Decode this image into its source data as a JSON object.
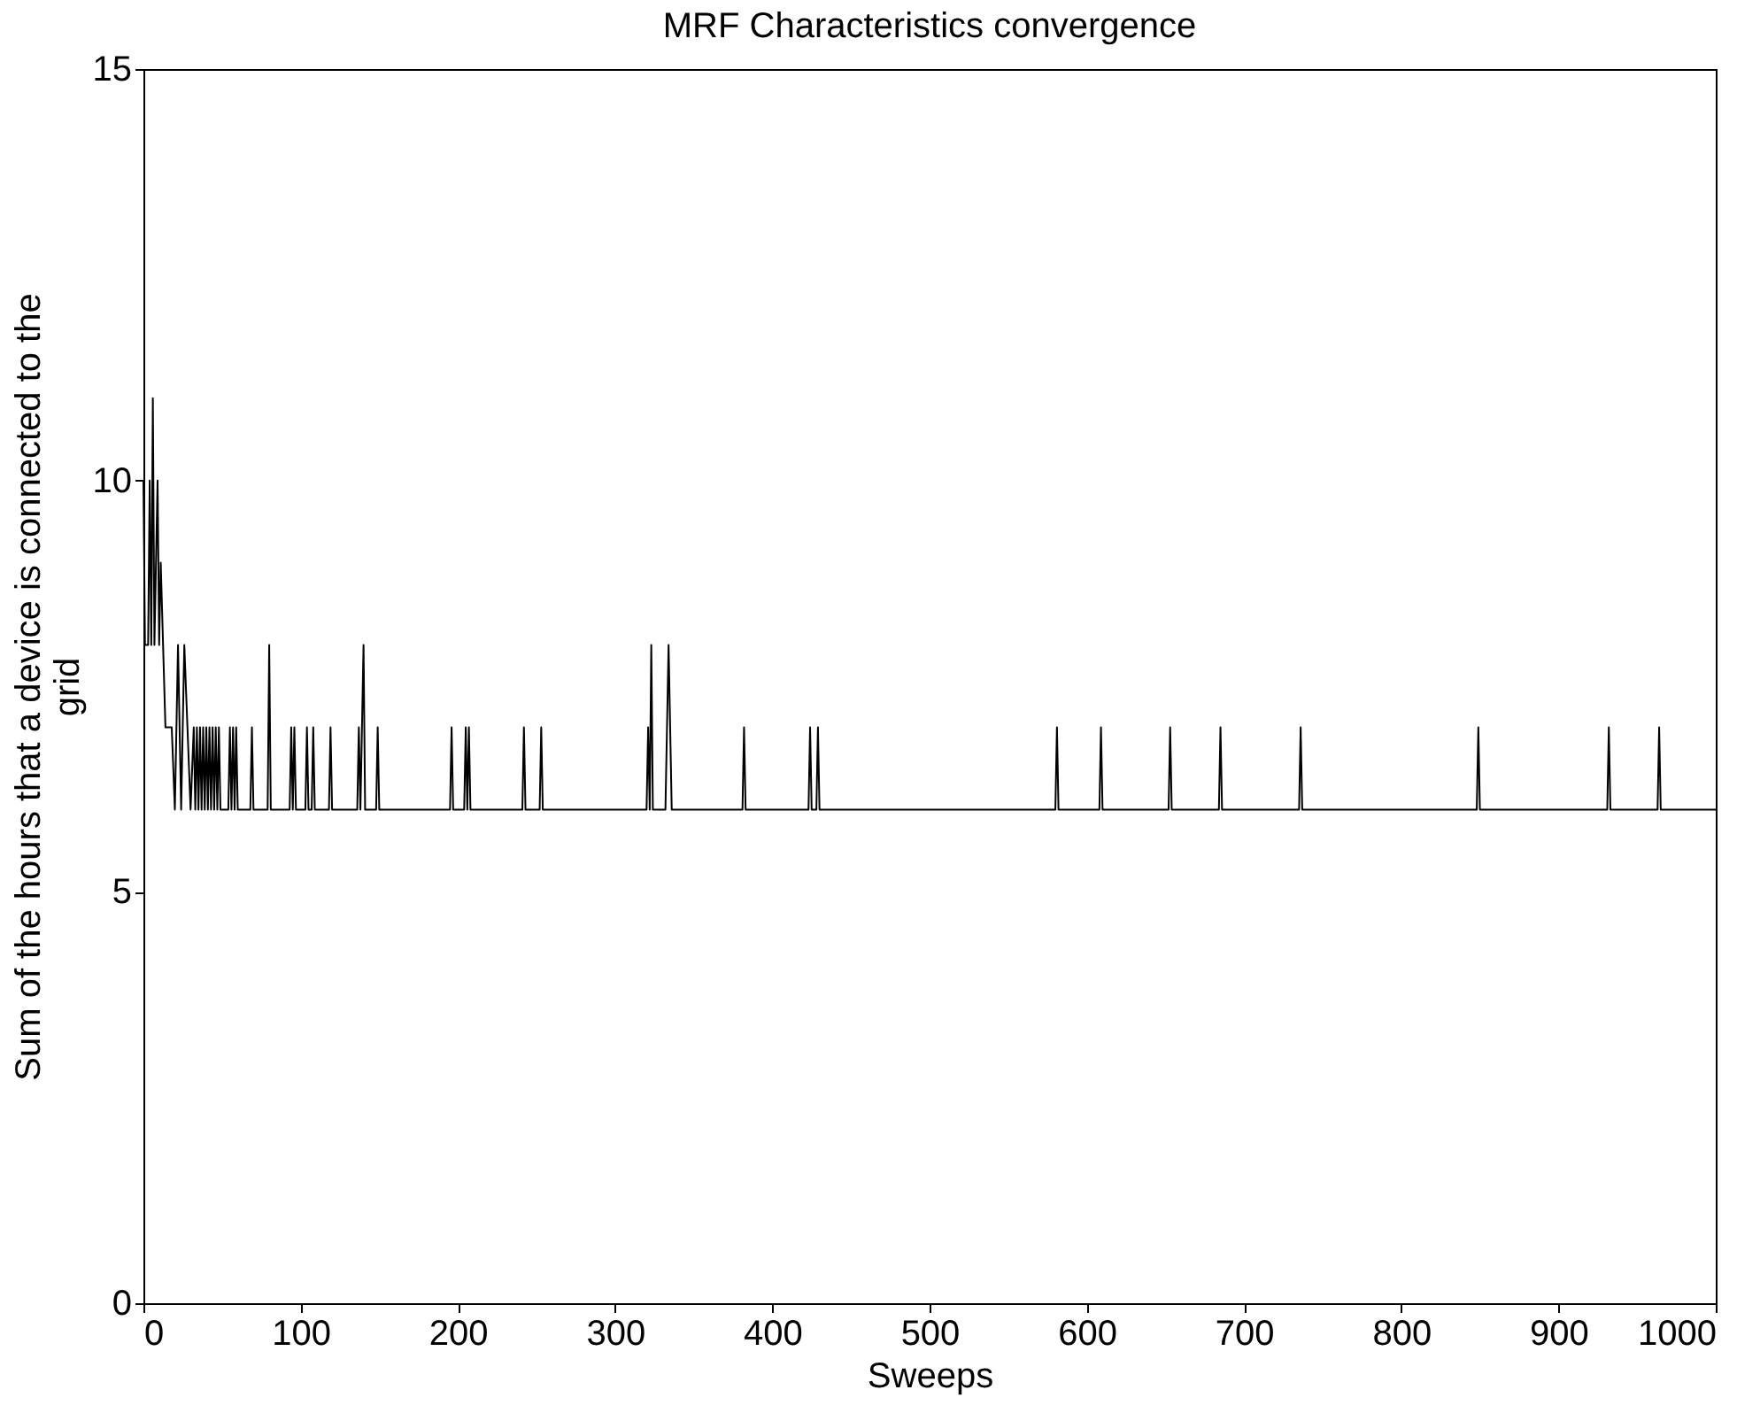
{
  "chart_data": {
    "type": "line",
    "title": "MRF Characteristics convergence",
    "xlabel": "Sweeps",
    "ylabel": "Sum of the hours that a device is connected to the grid",
    "x": [
      0,
      1,
      3,
      4,
      5,
      6,
      7,
      9,
      10,
      11,
      14,
      18,
      20,
      22,
      24,
      26,
      28,
      30,
      32,
      33,
      34,
      35,
      36,
      37,
      38,
      39,
      40,
      41,
      42,
      43,
      44,
      45,
      46,
      47,
      48,
      49,
      54,
      55,
      56,
      57,
      58,
      59,
      60,
      68,
      69,
      70,
      79,
      80,
      81,
      93,
      94,
      95,
      96,
      97,
      103,
      104,
      105,
      107,
      108,
      109,
      118,
      119,
      120,
      136,
      137,
      138,
      139,
      140,
      141,
      148,
      149,
      150,
      195,
      196,
      197,
      204,
      205,
      206,
      207,
      208,
      241,
      242,
      243,
      252,
      253,
      254,
      320,
      321,
      322,
      323,
      324,
      332,
      334,
      336,
      381,
      382,
      383,
      423,
      424,
      425,
      428,
      429,
      430,
      580,
      581,
      582,
      608,
      609,
      610,
      652,
      653,
      654,
      684,
      685,
      686,
      735,
      736,
      737,
      848,
      849,
      850,
      931,
      932,
      933,
      963,
      964,
      965,
      1000
    ],
    "series": [
      {
        "color": "#000000",
        "values": [
          10,
          8,
          8,
          10,
          8,
          11,
          8,
          10,
          8,
          9,
          7,
          7,
          6,
          8,
          6,
          8,
          7,
          6,
          7,
          6,
          7,
          6,
          7,
          6,
          7,
          6,
          7,
          6,
          7,
          6,
          7,
          6,
          7,
          6,
          7,
          6,
          6,
          7,
          6,
          7,
          6,
          7,
          6,
          6,
          7,
          6,
          6,
          8,
          6,
          6,
          7,
          6,
          7,
          6,
          6,
          7,
          6,
          6,
          7,
          6,
          6,
          7,
          6,
          6,
          7,
          6,
          7,
          8,
          6,
          6,
          7,
          6,
          6,
          7,
          6,
          6,
          7,
          6,
          7,
          6,
          6,
          7,
          6,
          6,
          7,
          6,
          6,
          7,
          6,
          8,
          6,
          6,
          8,
          6,
          6,
          7,
          6,
          6,
          7,
          6,
          6,
          7,
          6,
          6,
          7,
          6,
          6,
          7,
          6,
          6,
          7,
          6,
          6,
          7,
          6,
          6,
          7,
          6,
          6,
          7,
          6,
          6,
          7,
          6,
          6,
          7,
          6,
          6
        ]
      }
    ],
    "xlim": [
      0,
      1000
    ],
    "xticks": [
      0,
      100,
      200,
      300,
      400,
      500,
      600,
      700,
      800,
      900,
      1000
    ],
    "ylim": [
      0,
      15
    ],
    "yticks": [
      0,
      5,
      10,
      15
    ],
    "grid": false,
    "line_style": "solid",
    "marker": "none"
  }
}
